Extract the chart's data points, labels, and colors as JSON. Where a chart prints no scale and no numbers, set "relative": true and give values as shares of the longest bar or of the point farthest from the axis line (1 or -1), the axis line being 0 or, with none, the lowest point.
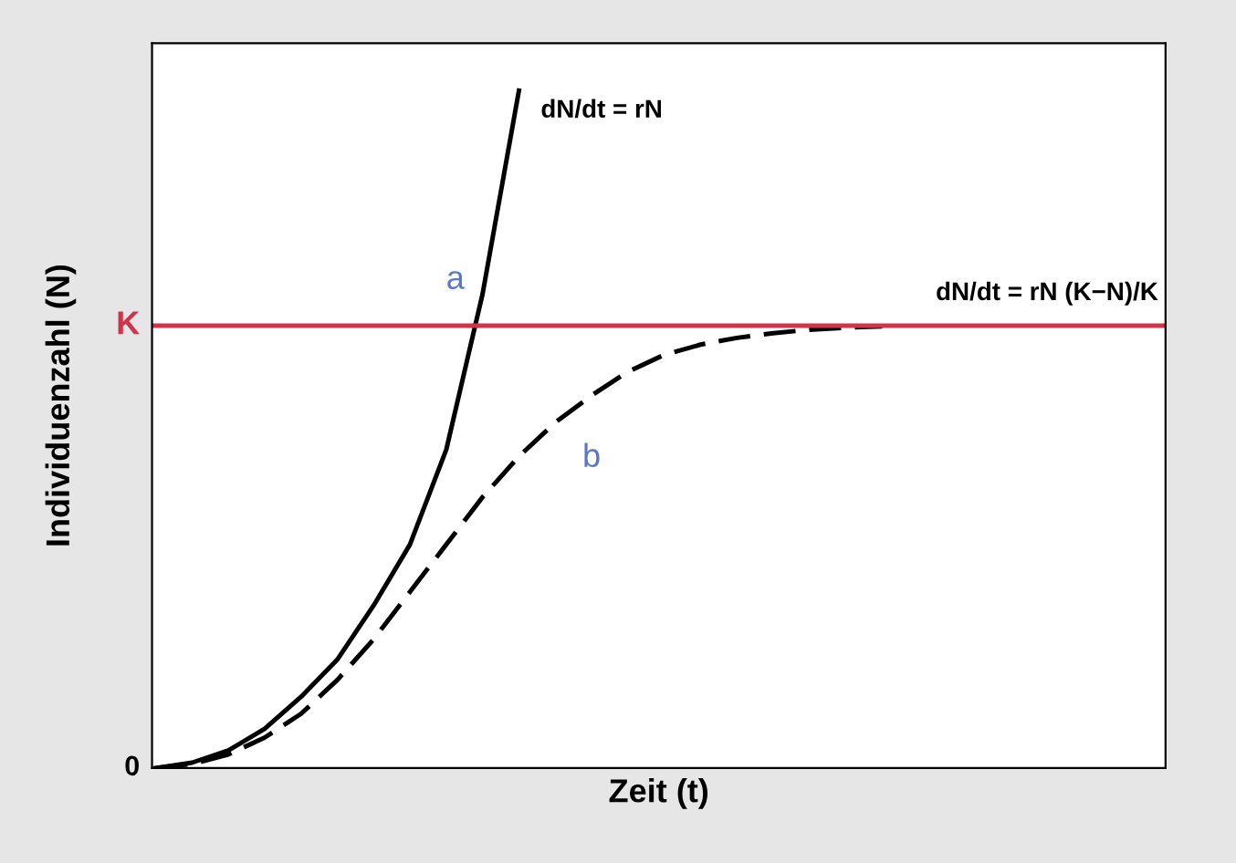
{
  "chart_data": {
    "type": "line",
    "relative": true,
    "xlabel": "Zeit (t)",
    "ylabel": "Individuenzahl (N)",
    "categories": [
      null,
      null,
      null,
      null,
      null,
      null,
      null,
      null,
      null,
      null,
      null,
      null,
      null,
      null,
      null,
      null,
      null,
      null,
      null,
      null,
      null,
      null,
      null,
      null,
      null,
      null,
      null,
      null
    ],
    "series": [
      {
        "name": "a",
        "color": "#000000",
        "line_style": "solid",
        "values": [
          0,
          0.008,
          0.026,
          0.058,
          0.105,
          0.16,
          0.24,
          0.33,
          0.47,
          0.7,
          1.0,
          null,
          null,
          null,
          null,
          null,
          null,
          null,
          null,
          null,
          null,
          null,
          null,
          null,
          null,
          null,
          null,
          null
        ]
      },
      {
        "name": "b",
        "color": "#000000",
        "line_style": "dashed",
        "values": [
          0,
          0.006,
          0.02,
          0.045,
          0.08,
          0.13,
          0.19,
          0.26,
          0.33,
          0.4,
          0.46,
          0.51,
          0.55,
          0.585,
          0.61,
          0.625,
          0.635,
          0.642,
          0.647,
          0.65,
          0.652,
          null,
          null,
          null,
          null,
          null,
          null,
          null
        ]
      }
    ],
    "ref_lines": [
      {
        "axis": "y",
        "value": 0.653,
        "label": "K",
        "color": "#d0344a"
      }
    ],
    "annotations": [
      "dN/dt = rN",
      "dN/dt = rN (K−N)/K",
      "0"
    ],
    "legend": false
  }
}
